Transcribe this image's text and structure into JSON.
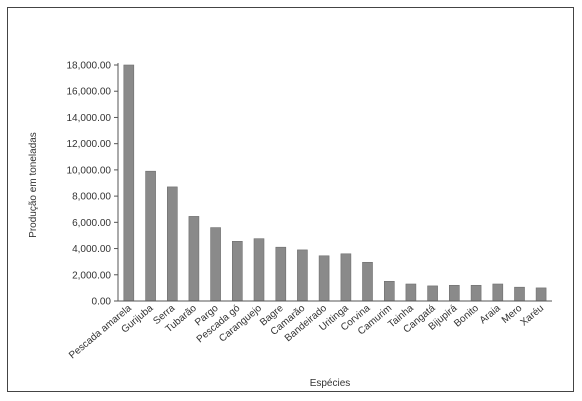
{
  "chart_data": {
    "type": "bar",
    "title": "",
    "xlabel": "Espécies",
    "ylabel": "Produção em toneladas",
    "categories": [
      "Pescada amarela",
      "Gurijuba",
      "Serra",
      "Tubarão",
      "Pargo",
      "Pescada gó",
      "Caranguejo",
      "Bagre",
      "Camarão",
      "Bandeirado",
      "Uritinga",
      "Corvina",
      "Camurim",
      "Tainha",
      "Cangatá",
      "Bijupirá",
      "Bonito",
      "Araia",
      "Mero",
      "Xaréu"
    ],
    "values": [
      18000,
      9900,
      8700,
      6450,
      5600,
      4550,
      4750,
      4100,
      3900,
      3450,
      3600,
      2950,
      1500,
      1300,
      1150,
      1200,
      1200,
      1300,
      1050,
      1000
    ],
    "yticks": [
      "0.00",
      "2,000.00",
      "4,000.00",
      "6,000.00",
      "8,000.00",
      "10,000.00",
      "12,000.00",
      "14,000.00",
      "16,000.00",
      "18,000.00"
    ],
    "ylim": [
      0,
      18000
    ],
    "grid": false,
    "bar_color": "#8a8a8a"
  }
}
